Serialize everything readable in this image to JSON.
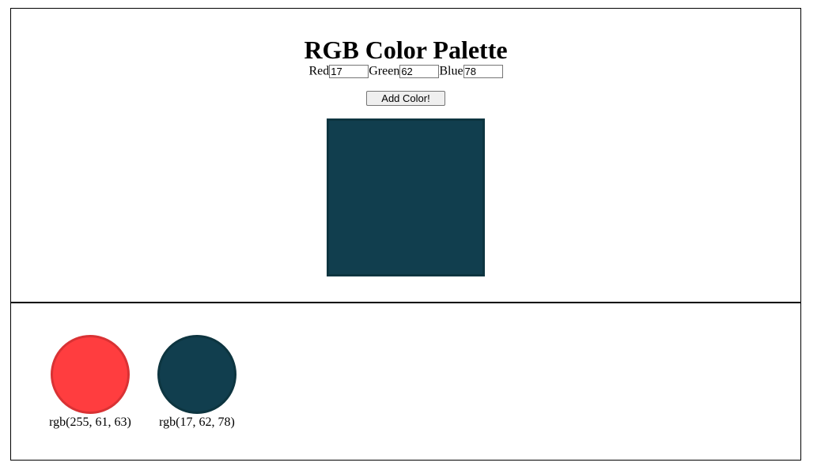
{
  "page": {
    "title": "RGB Color Palette"
  },
  "controls": {
    "red_label": "Red",
    "green_label": "Green",
    "blue_label": "Blue",
    "red_value": "17",
    "green_value": "62",
    "blue_value": "78",
    "add_button_label": "Add Color!"
  },
  "preview": {
    "color": "#113e4e",
    "border_color": "#0d3540"
  },
  "palette": {
    "swatches": [
      {
        "label": "rgb(255, 61, 63)",
        "color": "#ff3d3f",
        "border_color": "#d93234"
      },
      {
        "label": "rgb(17, 62, 78)",
        "color": "#113e4e",
        "border_color": "#0d3540"
      }
    ]
  }
}
